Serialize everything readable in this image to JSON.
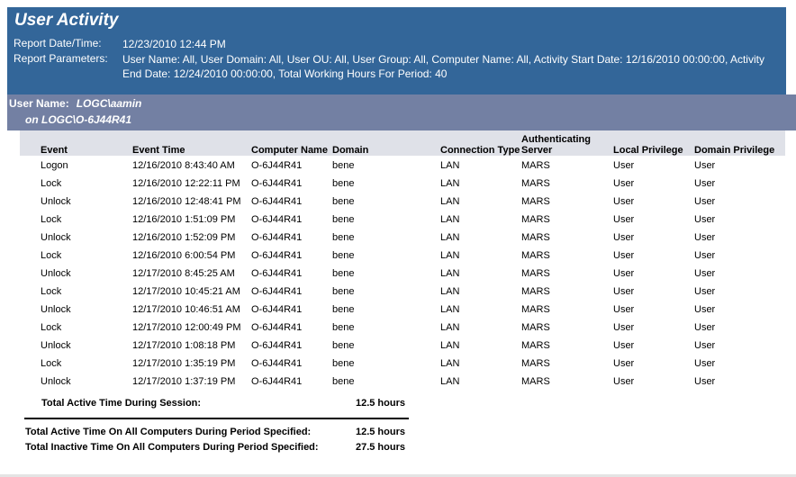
{
  "header": {
    "title": "User Activity",
    "report_datetime_label": "Report Date/Time:",
    "report_datetime": "12/23/2010 12:44 PM",
    "report_params_label": "Report Parameters:",
    "report_params": "User Name:  All, User Domain:  All, User OU:  All, User Group:  All, Computer Name:  All, Activity Start Date:  12/16/2010 00:00:00, Activity End Date:  12/24/2010 00:00:00, Total Working Hours For Period:  40"
  },
  "user": {
    "label": "User Name:",
    "name": "LOGC\\aamin",
    "computer": "on LOGC\\O-6J44R41"
  },
  "colors": {
    "header_bg": "#336699",
    "user_bar_bg": "#7380a3",
    "table_header_bg": "#dfe1e8"
  },
  "table": {
    "columns": [
      "Event",
      "Event Time",
      "Computer Name",
      "Domain",
      "Connection Type",
      "Authenticating Server",
      "Local Privilege",
      "Domain Privilege"
    ],
    "rows": [
      [
        "Logon",
        "12/16/2010 8:43:40 AM",
        "O-6J44R41",
        "bene",
        "LAN",
        "MARS",
        "User",
        "User"
      ],
      [
        "Lock",
        "12/16/2010 12:22:11 PM",
        "O-6J44R41",
        "bene",
        "LAN",
        "MARS",
        "User",
        "User"
      ],
      [
        "Unlock",
        "12/16/2010 12:48:41 PM",
        "O-6J44R41",
        "bene",
        "LAN",
        "MARS",
        "User",
        "User"
      ],
      [
        "Lock",
        "12/16/2010 1:51:09 PM",
        "O-6J44R41",
        "bene",
        "LAN",
        "MARS",
        "User",
        "User"
      ],
      [
        "Unlock",
        "12/16/2010 1:52:09 PM",
        "O-6J44R41",
        "bene",
        "LAN",
        "MARS",
        "User",
        "User"
      ],
      [
        "Lock",
        "12/16/2010 6:00:54 PM",
        "O-6J44R41",
        "bene",
        "LAN",
        "MARS",
        "User",
        "User"
      ],
      [
        "Unlock",
        "12/17/2010 8:45:25 AM",
        "O-6J44R41",
        "bene",
        "LAN",
        "MARS",
        "User",
        "User"
      ],
      [
        "Lock",
        "12/17/2010 10:45:21 AM",
        "O-6J44R41",
        "bene",
        "LAN",
        "MARS",
        "User",
        "User"
      ],
      [
        "Unlock",
        "12/17/2010 10:46:51 AM",
        "O-6J44R41",
        "bene",
        "LAN",
        "MARS",
        "User",
        "User"
      ],
      [
        "Lock",
        "12/17/2010 12:00:49 PM",
        "O-6J44R41",
        "bene",
        "LAN",
        "MARS",
        "User",
        "User"
      ],
      [
        "Unlock",
        "12/17/2010 1:08:18 PM",
        "O-6J44R41",
        "bene",
        "LAN",
        "MARS",
        "User",
        "User"
      ],
      [
        "Lock",
        "12/17/2010 1:35:19 PM",
        "O-6J44R41",
        "bene",
        "LAN",
        "MARS",
        "User",
        "User"
      ],
      [
        "Unlock",
        "12/17/2010 1:37:19 PM",
        "O-6J44R41",
        "bene",
        "LAN",
        "MARS",
        "User",
        "User"
      ]
    ]
  },
  "session": {
    "label": "Total Active Time During Session:",
    "value": "12.5 hours"
  },
  "totals": {
    "active_label": "Total Active Time On All Computers During Period Specified:",
    "active_value": "12.5  hours",
    "inactive_label": "Total Inactive Time On All Computers During Period Specified:",
    "inactive_value": "27.5  hours"
  }
}
